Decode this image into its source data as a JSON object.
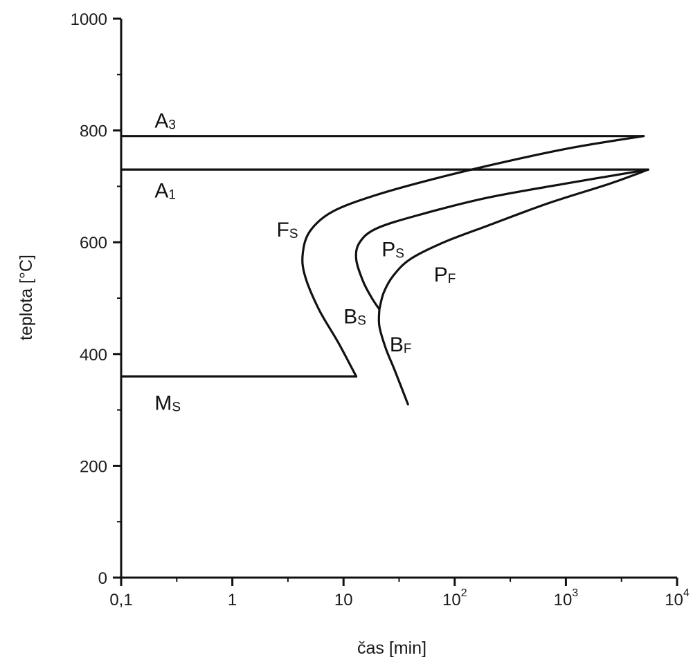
{
  "chart_data": {
    "type": "line",
    "xlabel": "čas [min]",
    "ylabel": "teplota [°C]",
    "x_scale": "log",
    "xlim": [
      0.1,
      10000
    ],
    "ylim": [
      0,
      1000
    ],
    "x_ticks": [
      {
        "value": 0.1,
        "label": "0,1"
      },
      {
        "value": 1,
        "label": "1"
      },
      {
        "value": 10,
        "label": "10"
      },
      {
        "value": 100,
        "base": "10",
        "exp": "2"
      },
      {
        "value": 1000,
        "base": "10",
        "exp": "3"
      },
      {
        "value": 10000,
        "base": "10",
        "exp": "4"
      }
    ],
    "y_ticks": [
      {
        "value": 0,
        "label": "0"
      },
      {
        "value": 200,
        "label": "200"
      },
      {
        "value": 400,
        "label": "400"
      },
      {
        "value": 600,
        "label": "600"
      },
      {
        "value": 800,
        "label": "800"
      },
      {
        "value": 1000,
        "label": "1000"
      }
    ],
    "y_minor_ticks": [
      100,
      300,
      500,
      700,
      900
    ],
    "grid": false,
    "series": [
      {
        "key": "a3",
        "label_main": "A",
        "label_sub": "3",
        "label_at": [
          0.2,
          805
        ],
        "points": [
          [
            0.1,
            790
          ],
          [
            5000,
            790
          ]
        ]
      },
      {
        "key": "a1",
        "label_main": "A",
        "label_sub": "1",
        "label_at": [
          0.2,
          680
        ],
        "points": [
          [
            0.1,
            730
          ],
          [
            5500,
            730
          ]
        ]
      },
      {
        "key": "ms",
        "label_main": "M",
        "label_sub": "S",
        "label_at": [
          0.2,
          300
        ],
        "points": [
          [
            0.1,
            360
          ],
          [
            13,
            360
          ]
        ]
      },
      {
        "key": "fs",
        "label_main": "F",
        "label_sub": "S",
        "label_at": [
          2.5,
          610
        ],
        "points": [
          [
            13,
            360
          ],
          [
            9,
            420
          ],
          [
            6,
            480
          ],
          [
            4.5,
            540
          ],
          [
            4.3,
            580
          ],
          [
            5,
            620
          ],
          [
            8,
            655
          ],
          [
            20,
            685
          ],
          [
            70,
            715
          ],
          [
            300,
            745
          ],
          [
            1200,
            770
          ],
          [
            5000,
            790
          ]
        ]
      },
      {
        "key": "ps",
        "label_main": "P",
        "label_sub": "S",
        "label_at": [
          22,
          575
        ],
        "points": [
          [
            21,
            480
          ],
          [
            18,
            500
          ],
          [
            15,
            530
          ],
          [
            13,
            570
          ],
          [
            14,
            600
          ],
          [
            20,
            625
          ],
          [
            50,
            650
          ],
          [
            200,
            680
          ],
          [
            1000,
            705
          ],
          [
            5500,
            730
          ]
        ]
      },
      {
        "key": "pf",
        "label_main": "P",
        "label_sub": "F",
        "label_at": [
          65,
          530
        ],
        "points": [
          [
            21,
            480
          ],
          [
            23,
            510
          ],
          [
            28,
            540
          ],
          [
            40,
            570
          ],
          [
            80,
            600
          ],
          [
            200,
            630
          ],
          [
            700,
            670
          ],
          [
            2500,
            705
          ],
          [
            5500,
            730
          ]
        ]
      },
      {
        "key": "bf",
        "label_main": "B",
        "label_sub": "F",
        "label_at": [
          26,
          405
        ],
        "points": [
          [
            21,
            480
          ],
          [
            21,
            450
          ],
          [
            24,
            410
          ],
          [
            29,
            370
          ],
          [
            38,
            310
          ]
        ]
      }
    ],
    "annotations": [
      {
        "key": "bs",
        "label_main": "B",
        "label_sub": "S",
        "label_at": [
          10,
          455
        ]
      }
    ]
  }
}
